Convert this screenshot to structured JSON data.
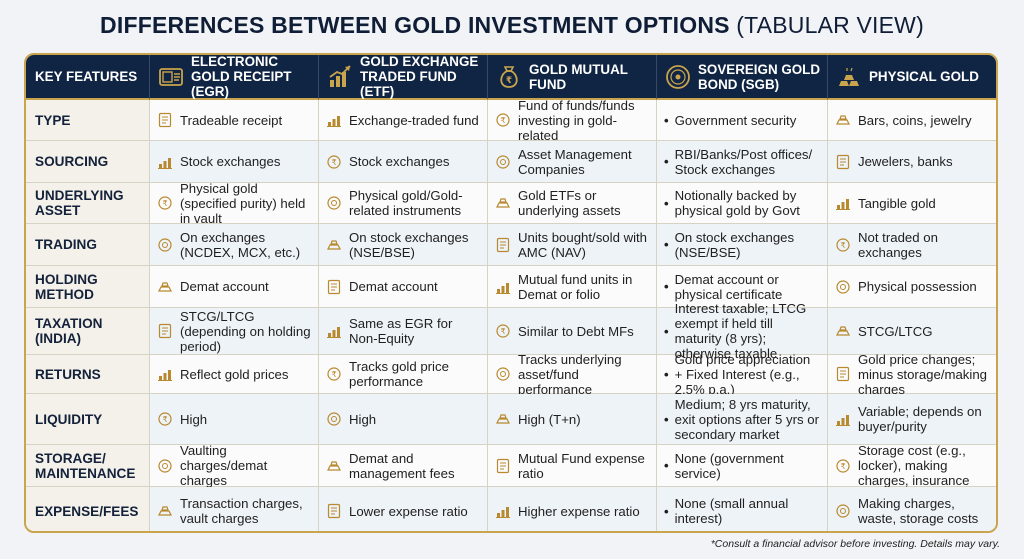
{
  "title": {
    "main": "DIFFERENCES BETWEEN GOLD INVESTMENT OPTIONS",
    "sub": "(TABULAR VIEW)"
  },
  "headers": [
    {
      "label": "KEY FEATURES",
      "icon": ""
    },
    {
      "label": "ELECTRONIC GOLD RECEIPT (EGR)",
      "icon": "gold-receipt-icon"
    },
    {
      "label": "GOLD EXCHANGE TRADED FUND (ETF)",
      "icon": "growth-chart-icon"
    },
    {
      "label": "GOLD MUTUAL FUND",
      "icon": "money-bag-icon"
    },
    {
      "label": "SOVEREIGN GOLD BOND (SGB)",
      "icon": "government-seal-icon"
    },
    {
      "label": "PHYSICAL GOLD",
      "icon": "gold-bars-icon"
    }
  ],
  "rows": [
    {
      "feature": "TYPE",
      "cells": [
        "Tradeable receipt",
        "Exchange-traded fund",
        "Fund of funds/funds investing in gold-related",
        "Government security",
        "Bars, coins, jewelry"
      ]
    },
    {
      "feature": "SOURCING",
      "cells": [
        "Stock exchanges",
        "Stock exchanges",
        "Asset Management Companies",
        "RBI/Banks/Post offices/ Stock exchanges",
        "Jewelers, banks"
      ]
    },
    {
      "feature": "UNDERLYING ASSET",
      "cells": [
        "Physical gold (specified purity) held in vault",
        "Physical gold/Gold-related instruments",
        "Gold ETFs or underlying assets",
        "Notionally backed by physical gold by Govt",
        "Tangible gold"
      ]
    },
    {
      "feature": "TRADING",
      "cells": [
        "On exchanges (NCDEX, MCX, etc.)",
        "On stock exchanges (NSE/BSE)",
        "Units bought/sold with AMC (NAV)",
        "On stock exchanges (NSE/BSE)",
        "Not traded on exchanges"
      ]
    },
    {
      "feature": "HOLDING METHOD",
      "cells": [
        "Demat account",
        "Demat account",
        "Mutual fund units in Demat or folio",
        "Demat account or physical certificate",
        "Physical possession"
      ]
    },
    {
      "feature": "TAXATION (INDIA)",
      "cells": [
        "STCG/LTCG (depending on holding period)",
        "Same as EGR for Non-Equity",
        "Similar to Debt MFs",
        "Interest taxable; LTCG exempt if held till maturity (8 yrs); otherwise taxable",
        "STCG/LTCG"
      ]
    },
    {
      "feature": "RETURNS",
      "cells": [
        "Reflect gold prices",
        "Tracks gold price performance",
        "Tracks underlying asset/fund performance",
        "Gold price appreciation + Fixed Interest (e.g., 2.5% p.a.)",
        "Gold price changes; minus storage/making charges"
      ]
    },
    {
      "feature": "LIQUIDITY",
      "cells": [
        "High",
        "High",
        "High (T+n)",
        "Medium; 8 yrs maturity, exit options after 5 yrs or secondary market",
        "Variable; depends on buyer/purity"
      ]
    },
    {
      "feature": "STORAGE/ MAINTENANCE",
      "cells": [
        "Vaulting charges/demat charges",
        "Demat and management fees",
        "Mutual Fund expense ratio",
        "None (government service)",
        "Storage cost (e.g., locker), making charges, insurance"
      ]
    },
    {
      "feature": "EXPENSE/FEES",
      "cells": [
        "Transaction charges, vault charges",
        "Lower expense ratio",
        "Higher expense ratio",
        "None (small annual interest)",
        "Making charges, waste, storage costs"
      ]
    }
  ],
  "bullet_column": 3,
  "bullet_char": "•",
  "footer": "*Consult a financial advisor before investing. Details may vary.",
  "colors": {
    "header_bg": "#102544",
    "gold": "#c9a44c",
    "accent": "#b8892e"
  }
}
